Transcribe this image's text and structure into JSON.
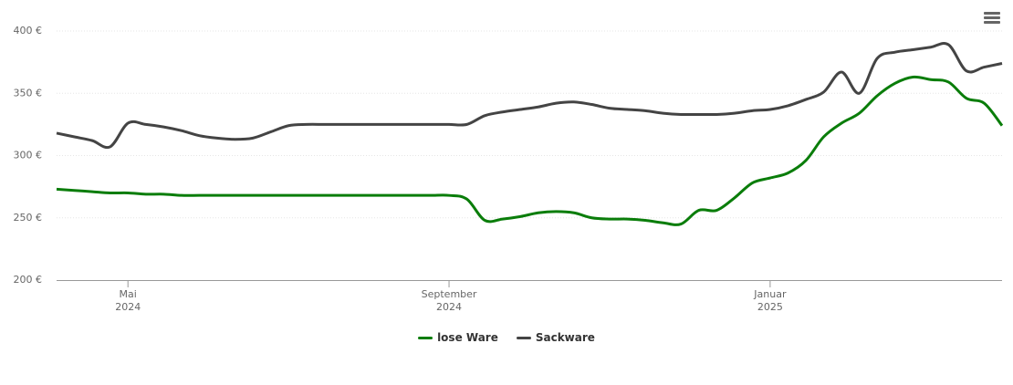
{
  "chart_data": {
    "type": "line",
    "categories": [
      null,
      null,
      null,
      null,
      "Mai 2024",
      null,
      null,
      null,
      null,
      null,
      null,
      null,
      null,
      null,
      null,
      null,
      null,
      null,
      null,
      null,
      null,
      null,
      "September 2024",
      null,
      null,
      null,
      null,
      null,
      null,
      null,
      null,
      null,
      null,
      null,
      null,
      null,
      null,
      null,
      null,
      null,
      "Januar 2025",
      null,
      null,
      null,
      null,
      null,
      null,
      null,
      null,
      null,
      null,
      null,
      null,
      null
    ],
    "series": [
      {
        "name": "lose Ware",
        "color": "#0a7d0a",
        "values": [
          273,
          272,
          271,
          270,
          270,
          269,
          269,
          268,
          268,
          268,
          268,
          268,
          268,
          268,
          268,
          268,
          268,
          268,
          268,
          268,
          268,
          268,
          268,
          265,
          248,
          249,
          251,
          254,
          255,
          254,
          250,
          249,
          249,
          248,
          246,
          245,
          256,
          256,
          266,
          278,
          282,
          286,
          296,
          315,
          326,
          334,
          348,
          358,
          363,
          361,
          359,
          346,
          342,
          324
        ]
      },
      {
        "name": "Sackware",
        "color": "#444444",
        "values": [
          318,
          315,
          312,
          307,
          326,
          325,
          323,
          320,
          316,
          314,
          313,
          314,
          319,
          324,
          325,
          325,
          325,
          325,
          325,
          325,
          325,
          325,
          325,
          325,
          332,
          335,
          337,
          339,
          342,
          343,
          341,
          338,
          337,
          336,
          334,
          333,
          333,
          333,
          334,
          336,
          337,
          340,
          345,
          351,
          367,
          350,
          378,
          383,
          385,
          387,
          389,
          368,
          371,
          374
        ]
      }
    ],
    "ylim": [
      200,
      400
    ],
    "yticks": [
      {
        "value": 200,
        "label": "200 €"
      },
      {
        "value": 250,
        "label": "250 €"
      },
      {
        "value": 300,
        "label": "300 €"
      },
      {
        "value": 350,
        "label": "350 €"
      },
      {
        "value": 400,
        "label": "400 €"
      }
    ],
    "grid": true
  }
}
